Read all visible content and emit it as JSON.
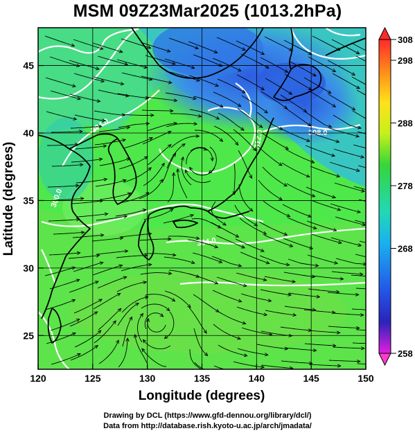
{
  "title": "MSM 09Z23Mar2025 (1013.2hPa)",
  "footer": {
    "line1": "Drawing by DCL (https://www.gfd-dennou.org/library/dcl/)",
    "line2": "Data from http://database.rish.kyoto-u.ac.jp/arch/jmadata/"
  },
  "axes": {
    "xlabel": "Longitude (degrees)",
    "ylabel": "Latitude  (degrees)",
    "xticks": [
      "120",
      "125",
      "130",
      "135",
      "140",
      "145",
      "150"
    ],
    "yticks": [
      "25",
      "30",
      "35",
      "40",
      "45"
    ],
    "xlim": [
      120,
      150
    ],
    "ylim": [
      22.5,
      47.8
    ]
  },
  "colorbar": {
    "ticks": [
      "308",
      "298",
      "288",
      "278",
      "268",
      "258"
    ],
    "range": [
      258,
      308
    ]
  },
  "contour_labels": [
    "304.0",
    "300.0",
    "308.0",
    "312.0",
    "304.0"
  ],
  "colors": {
    "warm_green": "#4fe84a",
    "light_green": "#7cf06a",
    "cyan": "#32d9b0",
    "blue": "#2f8ee8",
    "deep_blue": "#2c5ee0",
    "land_outline": "#000000",
    "contour": "#ffffff",
    "streamline": "#000000"
  }
}
